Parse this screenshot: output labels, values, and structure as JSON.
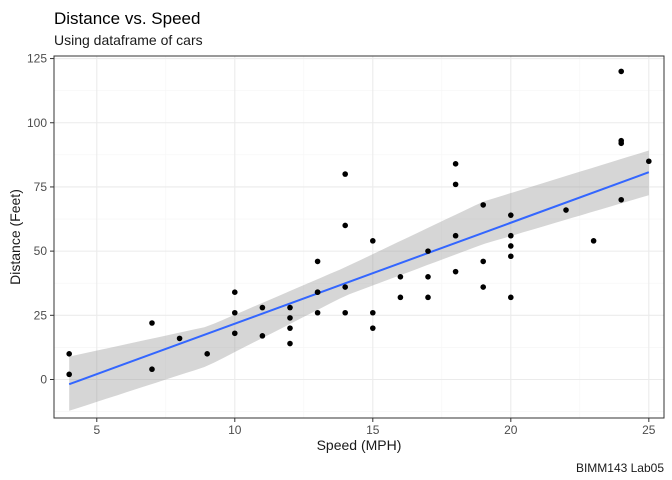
{
  "chart_data": {
    "type": "scatter",
    "title": "Distance vs. Speed",
    "subtitle": "Using dataframe of cars",
    "xlabel": "Speed (MPH)",
    "ylabel": "Distance (Feet)",
    "caption": "BIMM143 Lab05",
    "xlim": [
      3.45,
      25.55
    ],
    "ylim": [
      -15,
      126
    ],
    "x_ticks": [
      5,
      10,
      15,
      20,
      25
    ],
    "y_ticks": [
      0,
      25,
      50,
      75,
      100,
      125
    ],
    "grid": true,
    "legend": "none",
    "points": [
      [
        4,
        2
      ],
      [
        4,
        10
      ],
      [
        7,
        4
      ],
      [
        7,
        22
      ],
      [
        8,
        16
      ],
      [
        9,
        10
      ],
      [
        10,
        18
      ],
      [
        10,
        26
      ],
      [
        10,
        34
      ],
      [
        11,
        17
      ],
      [
        11,
        28
      ],
      [
        12,
        14
      ],
      [
        12,
        20
      ],
      [
        12,
        24
      ],
      [
        12,
        28
      ],
      [
        13,
        26
      ],
      [
        13,
        34
      ],
      [
        13,
        34
      ],
      [
        13,
        46
      ],
      [
        14,
        26
      ],
      [
        14,
        36
      ],
      [
        14,
        60
      ],
      [
        14,
        80
      ],
      [
        15,
        20
      ],
      [
        15,
        26
      ],
      [
        15,
        54
      ],
      [
        16,
        32
      ],
      [
        16,
        40
      ],
      [
        17,
        32
      ],
      [
        17,
        40
      ],
      [
        17,
        50
      ],
      [
        18,
        42
      ],
      [
        18,
        56
      ],
      [
        18,
        76
      ],
      [
        18,
        84
      ],
      [
        19,
        36
      ],
      [
        19,
        46
      ],
      [
        19,
        68
      ],
      [
        20,
        32
      ],
      [
        20,
        48
      ],
      [
        20,
        52
      ],
      [
        20,
        56
      ],
      [
        20,
        64
      ],
      [
        22,
        66
      ],
      [
        23,
        54
      ],
      [
        24,
        70
      ],
      [
        24,
        92
      ],
      [
        24,
        93
      ],
      [
        24,
        120
      ],
      [
        25,
        85
      ]
    ],
    "fit_line": {
      "method": "linear",
      "slope": 3.932,
      "intercept": -17.579,
      "x_range": [
        4,
        25
      ],
      "se_band": [
        [
          4,
          -12.2,
          8.9
        ],
        [
          9,
          5.2,
          20.6
        ],
        [
          14,
          32.6,
          43.7
        ],
        [
          19,
          52.7,
          69.3
        ],
        [
          25,
          71.8,
          89.2
        ]
      ]
    },
    "colors": {
      "points": "#000000",
      "line": "#3366ff",
      "ribbon": "#999999",
      "panel_border": "#333333",
      "grid": "#ebebeb"
    }
  }
}
